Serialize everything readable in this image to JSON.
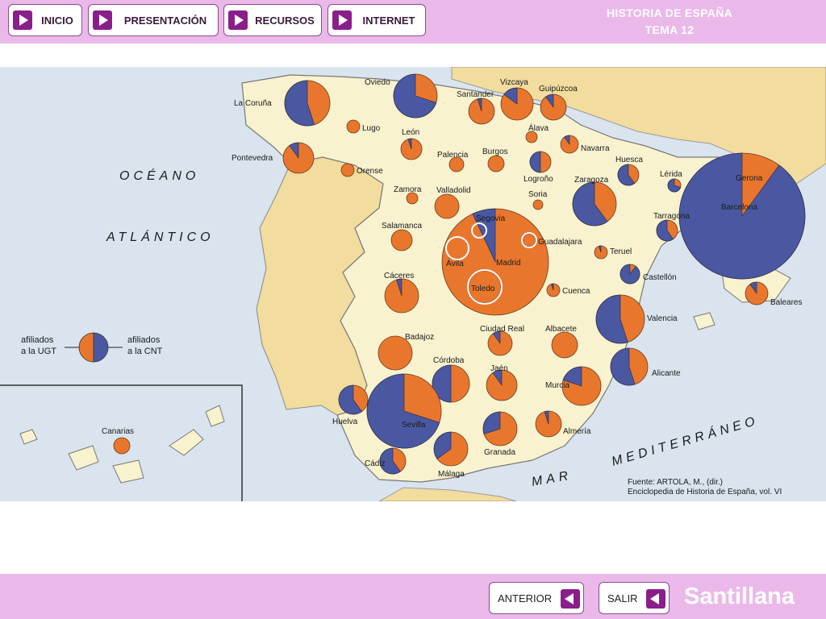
{
  "header": {
    "nav": [
      {
        "label": "INICIO"
      },
      {
        "label": "PRESENTACIÓN"
      },
      {
        "label": "RECURSOS"
      },
      {
        "label": "INTERNET"
      }
    ],
    "title_line1": "HISTORIA DE ESPAÑA",
    "title_line2": "TEMA 12"
  },
  "footer": {
    "prev_label": "ANTERIOR",
    "exit_label": "SALIR",
    "brand": "Santillana"
  },
  "map": {
    "sea_labels": {
      "atlantic_1": "OCÉANO",
      "atlantic_2": "ATLÁNTICO",
      "med_1": "MAR",
      "med_2": "MEDITERRÁNEO"
    },
    "legend": {
      "ugt": [
        "afiliados",
        "a la UGT"
      ],
      "cnt": [
        "afiliados",
        "a la CNT"
      ]
    },
    "source": {
      "line1": "Fuente: ARTOLA, M., (dir.)",
      "line2": "Enciclopedia de Historia de España, vol. VI"
    },
    "colors": {
      "ugt": "#e8772d",
      "cnt": "#4a58a2"
    },
    "provinces": [
      {
        "name": "La Coruña",
        "cnt": 0.55
      },
      {
        "name": "Lugo",
        "cnt": 0.0
      },
      {
        "name": "Oviedo",
        "cnt": 0.7
      },
      {
        "name": "Pontevedra",
        "cnt": 0.1
      },
      {
        "name": "Orense",
        "cnt": 0.0
      },
      {
        "name": "León",
        "cnt": 0.05
      },
      {
        "name": "Santander",
        "cnt": 0.05
      },
      {
        "name": "Vizcaya",
        "cnt": 0.15
      },
      {
        "name": "Guipúzcoa",
        "cnt": 0.1
      },
      {
        "name": "Álava",
        "cnt": 0.0
      },
      {
        "name": "Navarra",
        "cnt": 0.1
      },
      {
        "name": "Palencia",
        "cnt": 0.0
      },
      {
        "name": "Burgos",
        "cnt": 0.0
      },
      {
        "name": "Logroño",
        "cnt": 0.5
      },
      {
        "name": "Huesca",
        "cnt": 0.6
      },
      {
        "name": "Lérida",
        "cnt": 0.7
      },
      {
        "name": "Gerona",
        "cnt": 0.05
      },
      {
        "name": "Zamora",
        "cnt": 0.0
      },
      {
        "name": "Valladolid",
        "cnt": 0.0
      },
      {
        "name": "Soria",
        "cnt": 0.0
      },
      {
        "name": "Zaragoza",
        "cnt": 0.6
      },
      {
        "name": "Barcelona",
        "cnt": 0.9
      },
      {
        "name": "Tarragona",
        "cnt": 0.6
      },
      {
        "name": "Salamanca",
        "cnt": 0.0
      },
      {
        "name": "Segovia",
        "cnt": 0.0
      },
      {
        "name": "Ávila",
        "cnt": 0.0
      },
      {
        "name": "Madrid",
        "cnt": 0.07
      },
      {
        "name": "Guadalajara",
        "cnt": 0.0
      },
      {
        "name": "Toledo",
        "cnt": 0.0
      },
      {
        "name": "Teruel",
        "cnt": 0.05
      },
      {
        "name": "Castellón",
        "cnt": 0.9
      },
      {
        "name": "Cáceres",
        "cnt": 0.05
      },
      {
        "name": "Cuenca",
        "cnt": 0.05
      },
      {
        "name": "Baleares",
        "cnt": 0.1
      },
      {
        "name": "Valencia",
        "cnt": 0.55
      },
      {
        "name": "Badajoz",
        "cnt": 0.0
      },
      {
        "name": "Ciudad Real",
        "cnt": 0.1
      },
      {
        "name": "Albacete",
        "cnt": 0.0
      },
      {
        "name": "Alicante",
        "cnt": 0.55
      },
      {
        "name": "Córdoba",
        "cnt": 0.5
      },
      {
        "name": "Jaén",
        "cnt": 0.1
      },
      {
        "name": "Murcia",
        "cnt": 0.2
      },
      {
        "name": "Huelva",
        "cnt": 0.6
      },
      {
        "name": "Sevilla",
        "cnt": 0.7
      },
      {
        "name": "Granada",
        "cnt": 0.3
      },
      {
        "name": "Almería",
        "cnt": 0.05
      },
      {
        "name": "Cádiz",
        "cnt": 0.6
      },
      {
        "name": "Málaga",
        "cnt": 0.35
      },
      {
        "name": "Canarias",
        "cnt": 0.0
      }
    ]
  }
}
